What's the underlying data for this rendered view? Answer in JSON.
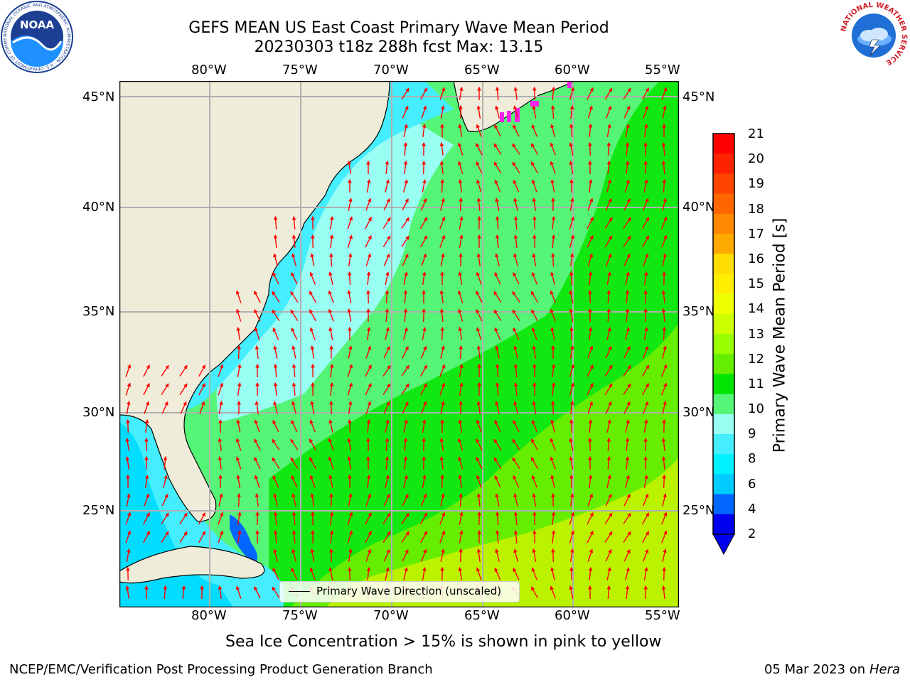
{
  "header": {
    "title_line1": "GEFS MEAN US East Coast Primary Wave Mean Period",
    "title_line2": "20230303 t18z 288h fcst   Max: 13.15",
    "noaa_logo": "NOAA",
    "noaa_logo_ring": "NATIONAL OCEANIC AND ATMOSPHERIC ADMINISTRATION · U.S. DEPARTMENT OF COMMERCE",
    "nws_logo_ring": "NATIONAL WEATHER SERVICE"
  },
  "map": {
    "lon_labels": [
      "80°W",
      "75°W",
      "70°W",
      "65°W",
      "60°W",
      "55°W"
    ],
    "lat_labels": [
      "45°N",
      "40°N",
      "35°N",
      "30°N",
      "25°N"
    ],
    "legend_label": "Primary Wave Direction (unscaled)",
    "ice_note": "Sea Ice Concentration > 15% is shown in pink to yellow",
    "colors": {
      "land": "#efedd9",
      "period_2_4": "#0066ff",
      "period_4_6": "#00ddff",
      "period_6_8": "#44eeff",
      "period_8_9": "#99fff2",
      "period_9_10": "#55f577",
      "period_10_11": "#11e811",
      "period_11_12": "#66ee00",
      "period_12_13": "#bbf200",
      "arrow": "#ff0000",
      "sea_ice": "#ff22ee",
      "grid": "#b0b0b0"
    }
  },
  "colorbar": {
    "label": "Primary Wave Mean Period [s]",
    "ticks": [
      "21",
      "20",
      "19",
      "18",
      "17",
      "16",
      "15",
      "14",
      "13",
      "12",
      "11",
      "10",
      "9",
      "8",
      "6",
      "4",
      "2"
    ],
    "colors": [
      "#ff0000",
      "#ff2200",
      "#ff4400",
      "#ff6600",
      "#ff8800",
      "#ffaa00",
      "#ffdd00",
      "#ffee00",
      "#eeff00",
      "#ccff00",
      "#99ff00",
      "#66ee00",
      "#00e600",
      "#55f577",
      "#99fff2",
      "#44eeff",
      "#00f2ff",
      "#00ccff",
      "#0066ff",
      "#0000ee"
    ]
  },
  "footer": {
    "left": "NCEP/EMC/Verification Post Processing Product Generation Branch",
    "date": "05 Mar 2023 on",
    "machine": "Hera"
  }
}
